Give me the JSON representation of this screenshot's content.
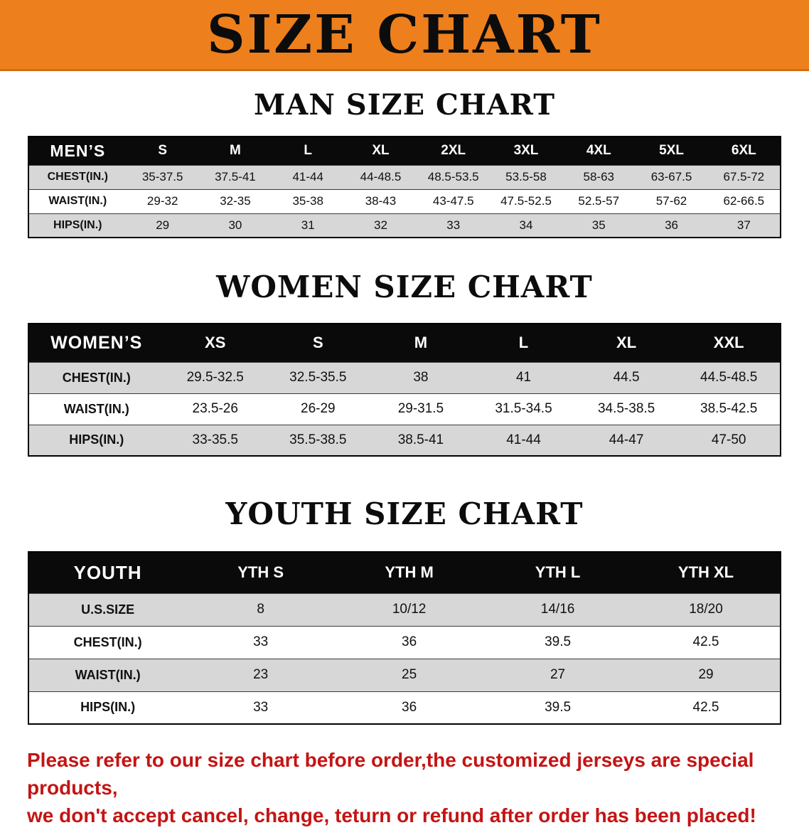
{
  "banner": {
    "title": "SIZE CHART",
    "bg_color": "#ee7f1d",
    "text_color": "#0c0c0c"
  },
  "colors": {
    "table_header_bg": "#0a0a0a",
    "table_row_alt": "#d7d7d7",
    "disclaimer_red": "#c41414"
  },
  "sections": [
    {
      "heading": "MAN SIZE CHART",
      "table": {
        "header": [
          "MEN’S",
          "S",
          "M",
          "L",
          "XL",
          "2XL",
          "3XL",
          "4XL",
          "5XL",
          "6XL"
        ],
        "rows": [
          [
            "CHEST(IN.)",
            "35-37.5",
            "37.5-41",
            "41-44",
            "44-48.5",
            "48.5-53.5",
            "53.5-58",
            "58-63",
            "63-67.5",
            "67.5-72"
          ],
          [
            "WAIST(IN.)",
            "29-32",
            "32-35",
            "35-38",
            "38-43",
            "43-47.5",
            "47.5-52.5",
            "52.5-57",
            "57-62",
            "62-66.5"
          ],
          [
            "HIPS(IN.)",
            "29",
            "30",
            "31",
            "32",
            "33",
            "34",
            "35",
            "36",
            "37"
          ]
        ]
      }
    },
    {
      "heading": "WOMEN SIZE CHART",
      "table": {
        "header": [
          "WOMEN’S",
          "XS",
          "S",
          "M",
          "L",
          "XL",
          "XXL"
        ],
        "rows": [
          [
            "CHEST(IN.)",
            "29.5-32.5",
            "32.5-35.5",
            "38",
            "41",
            "44.5",
            "44.5-48.5"
          ],
          [
            "WAIST(IN.)",
            "23.5-26",
            "26-29",
            "29-31.5",
            "31.5-34.5",
            "34.5-38.5",
            "38.5-42.5"
          ],
          [
            "HIPS(IN.)",
            "33-35.5",
            "35.5-38.5",
            "38.5-41",
            "41-44",
            "44-47",
            "47-50"
          ]
        ]
      }
    },
    {
      "heading": "YOUTH SIZE CHART",
      "table": {
        "header": [
          "YOUTH",
          "YTH S",
          "YTH M",
          "YTH L",
          "YTH XL"
        ],
        "rows": [
          [
            "U.S.SIZE",
            "8",
            "10/12",
            "14/16",
            "18/20"
          ],
          [
            "CHEST(IN.)",
            "33",
            "36",
            "39.5",
            "42.5"
          ],
          [
            "WAIST(IN.)",
            "23",
            "25",
            "27",
            "29"
          ],
          [
            "HIPS(IN.)",
            "33",
            "36",
            "39.5",
            "42.5"
          ]
        ]
      }
    }
  ],
  "disclaimer": {
    "line1": "Please refer to our size chart before order,the customized jerseys are special products,",
    "line2": "we don't accept cancel, change, teturn or refund after order has been placed!"
  }
}
